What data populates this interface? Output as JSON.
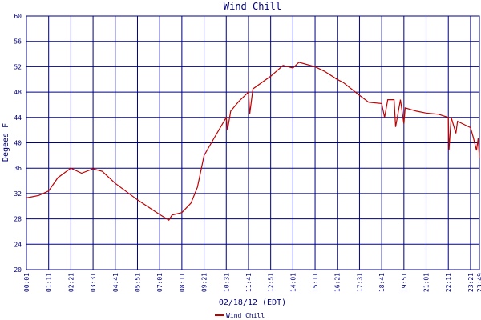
{
  "chart_data": {
    "type": "line",
    "title": "Wind Chill",
    "x_label": "02/18/12 (EDT)",
    "y_label": "Degees F",
    "xlim": [
      1,
      1429
    ],
    "ylim": [
      20,
      60
    ],
    "grid": true,
    "legend": "bottom",
    "xticks": [
      {
        "value": 1,
        "label": "00:01"
      },
      {
        "value": 71,
        "label": "01:11"
      },
      {
        "value": 141,
        "label": "02:21"
      },
      {
        "value": 211,
        "label": "03:31"
      },
      {
        "value": 281,
        "label": "04:41"
      },
      {
        "value": 351,
        "label": "05:51"
      },
      {
        "value": 421,
        "label": "07:01"
      },
      {
        "value": 491,
        "label": "08:11"
      },
      {
        "value": 561,
        "label": "09:21"
      },
      {
        "value": 631,
        "label": "10:31"
      },
      {
        "value": 701,
        "label": "11:41"
      },
      {
        "value": 771,
        "label": "12:51"
      },
      {
        "value": 841,
        "label": "14:01"
      },
      {
        "value": 911,
        "label": "15:11"
      },
      {
        "value": 981,
        "label": "16:21"
      },
      {
        "value": 1051,
        "label": "17:31"
      },
      {
        "value": 1121,
        "label": "18:41"
      },
      {
        "value": 1191,
        "label": "19:51"
      },
      {
        "value": 1261,
        "label": "21:01"
      },
      {
        "value": 1331,
        "label": "22:11"
      },
      {
        "value": 1401,
        "label": "23:21"
      },
      {
        "value": 1429,
        "label": "23:49"
      }
    ],
    "yticks": [
      20,
      24,
      28,
      32,
      36,
      40,
      44,
      48,
      52,
      56,
      60
    ],
    "series": [
      {
        "name": "Wind Chill",
        "color": "#c00000",
        "x": [
          1,
          40,
          71,
          100,
          141,
          175,
          211,
          240,
          281,
          351,
          421,
          450,
          460,
          491,
          520,
          540,
          561,
          590,
          631,
          635,
          645,
          670,
          701,
          705,
          715,
          771,
          810,
          841,
          860,
          911,
          940,
          981,
          1000,
          1051,
          1080,
          1121,
          1130,
          1140,
          1160,
          1165,
          1180,
          1191,
          1195,
          1230,
          1261,
          1300,
          1331,
          1333,
          1340,
          1355,
          1360,
          1401,
          1410,
          1420,
          1425,
          1429
        ],
        "values": [
          31.3,
          31.7,
          32.4,
          34.5,
          36.0,
          35.2,
          35.9,
          35.5,
          33.6,
          31.0,
          28.7,
          27.8,
          28.6,
          29.0,
          30.5,
          33.0,
          38.0,
          40.5,
          44.0,
          42.0,
          45.0,
          46.5,
          48.0,
          44.5,
          48.5,
          50.5,
          52.2,
          51.8,
          52.7,
          52.0,
          51.3,
          50.0,
          49.5,
          47.5,
          46.4,
          46.2,
          44.0,
          46.8,
          46.8,
          42.5,
          46.8,
          43.0,
          45.5,
          45.0,
          44.7,
          44.5,
          44.0,
          38.8,
          44.0,
          41.5,
          43.4,
          42.4,
          40.8,
          38.8,
          40.7,
          37.6
        ]
      }
    ]
  }
}
